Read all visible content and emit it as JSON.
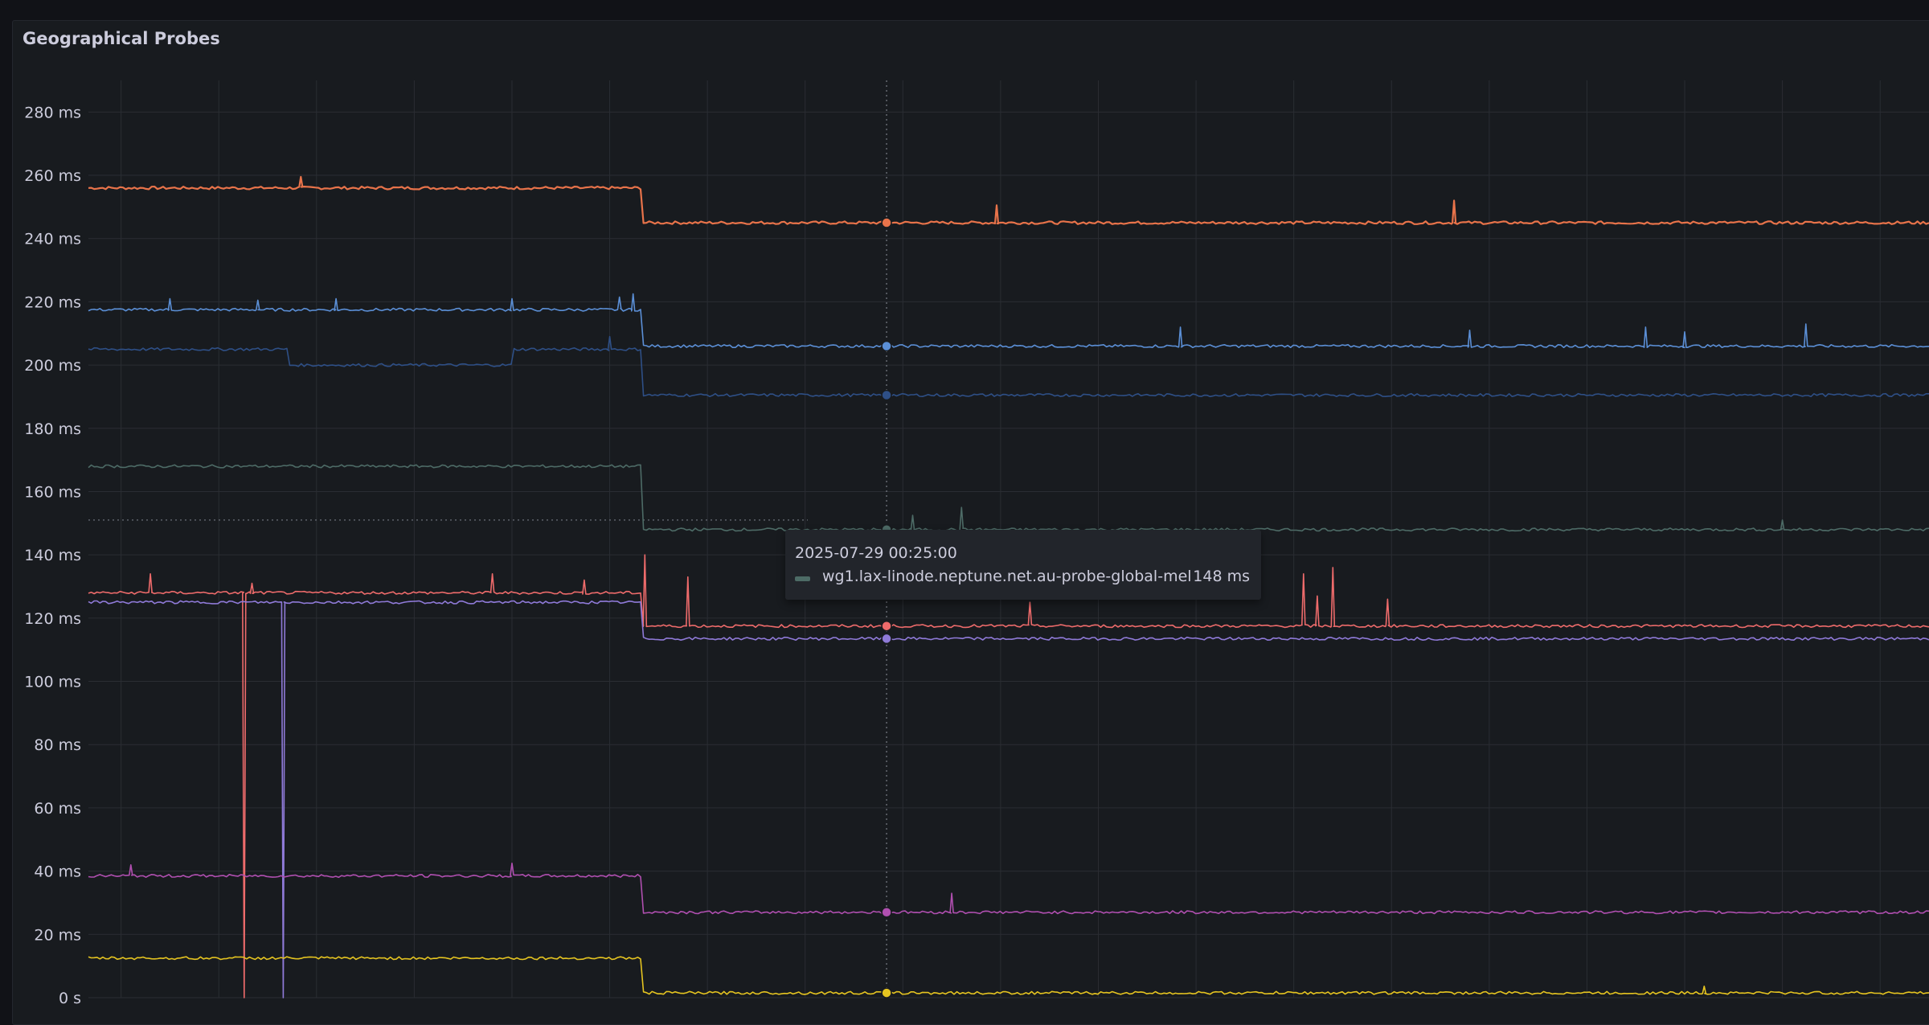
{
  "panel": {
    "title": "Geographical Probes"
  },
  "tooltip": {
    "time": "2025-07-29 00:25:00",
    "series": "wg1.lax-linode.neptune.net.au-probe-global-mel",
    "value": "148 ms",
    "color": "#4d6b66"
  },
  "chart_data": {
    "type": "line",
    "y_unit": "ms",
    "ylim": [
      0,
      290
    ],
    "y_ticks": [
      {
        "value": 0,
        "label": "0 s"
      },
      {
        "value": 20,
        "label": "20 ms"
      },
      {
        "value": 40,
        "label": "40 ms"
      },
      {
        "value": 60,
        "label": "60 ms"
      },
      {
        "value": 80,
        "label": "80 ms"
      },
      {
        "value": 100,
        "label": "100 ms"
      },
      {
        "value": 120,
        "label": "120 ms"
      },
      {
        "value": 140,
        "label": "140 ms"
      },
      {
        "value": 160,
        "label": "160 ms"
      },
      {
        "value": 180,
        "label": "180 ms"
      },
      {
        "value": 200,
        "label": "200 ms"
      },
      {
        "value": 220,
        "label": "220 ms"
      },
      {
        "value": 240,
        "label": "240 ms"
      },
      {
        "value": 260,
        "label": "260 ms"
      },
      {
        "value": 280,
        "label": "280 ms"
      }
    ],
    "x_hours": [
      20.333,
      5.75
    ],
    "x_tick_hours": [
      20.5,
      21.0,
      21.5,
      22.0,
      22.5,
      23.0,
      23.5,
      0.0,
      0.5,
      1.0,
      1.5,
      2.0,
      2.5,
      3.0,
      3.5,
      4.0,
      4.5,
      5.0,
      5.5
    ],
    "cursor_hour": 0.4167,
    "threshold_ms": 151,
    "grid": true,
    "series": [
      {
        "color": "#e8734a",
        "before": 256,
        "after": 245,
        "hilite": true,
        "spikes": [
          [
            21.42,
            259.5
          ],
          [
            0.98,
            250.5
          ],
          [
            3.32,
            252
          ]
        ]
      },
      {
        "color": "#5b8fd6",
        "before": 217.5,
        "after": 206,
        "hilite": true,
        "spikes": [
          [
            20.75,
            221
          ],
          [
            21.2,
            220.5
          ],
          [
            21.6,
            221
          ],
          [
            22.5,
            221
          ],
          [
            23.05,
            221.5
          ],
          [
            23.12,
            222.5
          ],
          [
            1.92,
            212
          ],
          [
            3.4,
            211
          ],
          [
            4.3,
            212
          ],
          [
            4.5,
            210.5
          ],
          [
            5.12,
            213
          ]
        ]
      },
      {
        "color": "#2e4f86",
        "before": 205,
        "after": 190.5,
        "hilite": true,
        "segments": [
          [
            20.333,
            205
          ],
          [
            21.35,
            205
          ],
          [
            21.35,
            200
          ],
          [
            22.5,
            200
          ],
          [
            22.5,
            205
          ],
          [
            23.16,
            205
          ],
          [
            23.16,
            190.5
          ]
        ],
        "spikes": [
          [
            23.0,
            209
          ]
        ]
      },
      {
        "color": "#4d6b66",
        "before": 168,
        "after": 148,
        "hilite": true,
        "spikes": [
          [
            0.55,
            152.5
          ],
          [
            0.8,
            155
          ],
          [
            5.0,
            151
          ]
        ]
      },
      {
        "color": "#ee6b6b",
        "before": 128,
        "after": 117.5,
        "hilite": true,
        "spikes": [
          [
            20.65,
            134
          ],
          [
            21.17,
            131
          ],
          [
            22.4,
            134
          ],
          [
            22.87,
            132
          ],
          [
            23.4,
            133
          ],
          [
            23.18,
            140
          ],
          [
            2.55,
            134
          ],
          [
            2.7,
            136
          ],
          [
            2.62,
            127
          ],
          [
            2.98,
            126
          ],
          [
            1.15,
            125
          ]
        ],
        "drops": [
          [
            21.13,
            0
          ]
        ]
      },
      {
        "color": "#8f7ad8",
        "before": 125,
        "after": 113.5,
        "hilite": true,
        "drops": [
          [
            21.33,
            0
          ]
        ]
      },
      {
        "color": "#b04fb0",
        "before": 38.5,
        "after": 27,
        "hilite": true,
        "spikes": [
          [
            20.55,
            42
          ],
          [
            22.5,
            42.5
          ],
          [
            0.75,
            33
          ]
        ]
      },
      {
        "color": "#e5c420",
        "before": 12.5,
        "after": 1.5,
        "hilite": true,
        "spikes": [
          [
            4.6,
            3.6
          ]
        ]
      }
    ]
  }
}
